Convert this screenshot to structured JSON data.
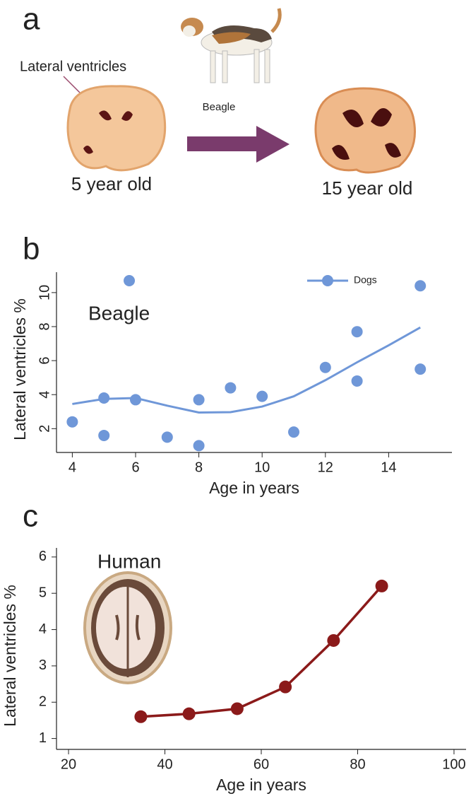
{
  "panels": [
    "a",
    "b",
    "c"
  ],
  "panel_a": {
    "pointer_label": "Lateral ventricles",
    "breed": "Beagle",
    "young_label": "5 year old",
    "old_label": "15 year old"
  },
  "chart_data": [
    {
      "type": "scatter",
      "annotation": "Beagle",
      "xlabel": "Age in years",
      "ylabel": "Lateral ventricles %",
      "xlim": [
        3.5,
        16
      ],
      "ylim": [
        0.6,
        11.2
      ],
      "xticks": [
        4,
        6,
        8,
        10,
        12,
        14
      ],
      "yticks": [
        2,
        4,
        6,
        8,
        10
      ],
      "legend": "upper right",
      "series": [
        {
          "name": "Dogs",
          "color": "#6f97d8",
          "x": [
            4,
            5,
            5,
            5.8,
            6,
            7,
            8,
            8,
            9,
            10,
            11,
            12,
            13,
            13,
            15,
            15
          ],
          "values": [
            2.4,
            1.6,
            3.8,
            10.7,
            3.7,
            1.5,
            3.7,
            1.0,
            4.4,
            3.9,
            1.8,
            5.6,
            7.7,
            4.8,
            10.4,
            5.5
          ],
          "trend_x": [
            4,
            5,
            6,
            7,
            8,
            9,
            10,
            11,
            12,
            13,
            14,
            15
          ],
          "trend_values": [
            3.45,
            3.75,
            3.8,
            3.35,
            2.95,
            2.97,
            3.3,
            3.9,
            4.85,
            5.9,
            6.9,
            7.95
          ]
        }
      ]
    },
    {
      "type": "line",
      "annotation": "Human",
      "xlabel": "Age in years",
      "ylabel": "Lateral ventricles %",
      "xlim": [
        17.5,
        102.5
      ],
      "ylim": [
        0.7,
        6.25
      ],
      "xticks": [
        20,
        40,
        60,
        80,
        100
      ],
      "yticks": [
        1,
        2,
        3,
        4,
        5,
        6
      ],
      "x": [
        35,
        45,
        55,
        65,
        75,
        85
      ],
      "series": [
        {
          "color": "#8b1a1a",
          "values": [
            1.6,
            1.68,
            1.82,
            2.42,
            3.7,
            5.2
          ]
        }
      ]
    }
  ]
}
